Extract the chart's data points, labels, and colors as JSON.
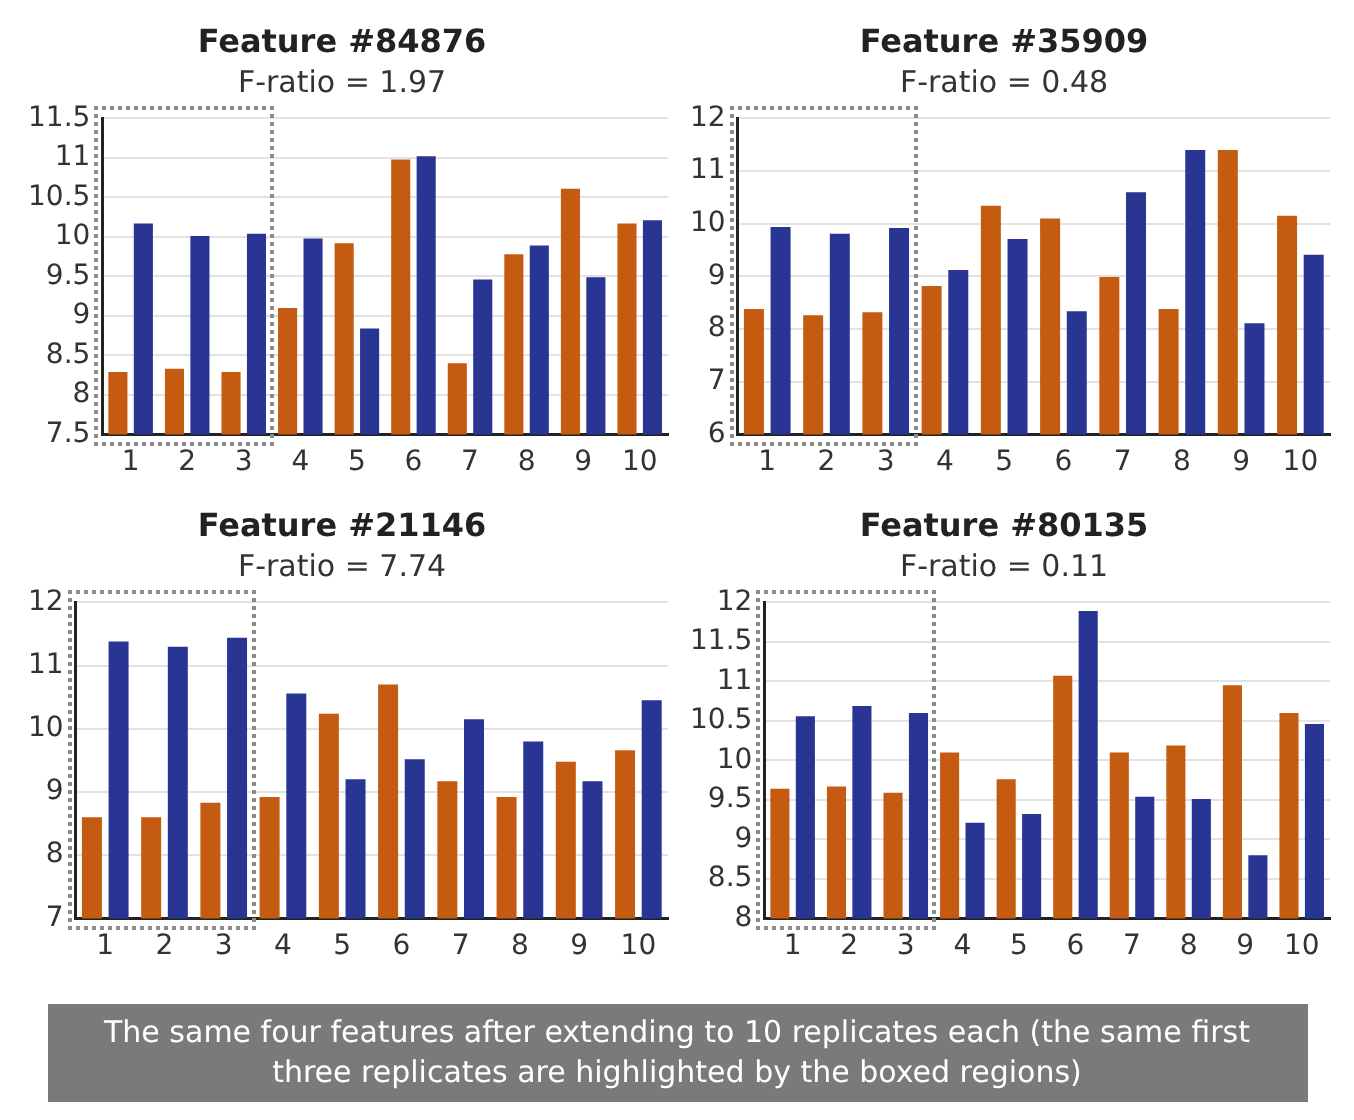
{
  "chart_data": [
    {
      "type": "bar",
      "title": "Feature #84876",
      "subtitle": "F-ratio = 1.97",
      "categories": [
        "1",
        "2",
        "3",
        "4",
        "5",
        "6",
        "7",
        "8",
        "9",
        "10"
      ],
      "series": [
        {
          "color": "#c55a11",
          "values": [
            8.29,
            8.33,
            8.29,
            9.1,
            9.92,
            10.98,
            8.4,
            9.78,
            10.61,
            10.17
          ]
        },
        {
          "color": "#283593",
          "values": [
            10.17,
            10.01,
            10.04,
            9.98,
            8.84,
            11.02,
            9.46,
            9.89,
            9.49,
            10.21
          ]
        }
      ],
      "ylim": [
        7.5,
        11.5
      ],
      "yticks": [
        7.5,
        8,
        8.5,
        9,
        9.5,
        10,
        10.5,
        11,
        11.5
      ],
      "grid": "y",
      "legend": false
    },
    {
      "type": "bar",
      "title": "Feature #35909",
      "subtitle": "F-ratio = 0.48",
      "categories": [
        "1",
        "2",
        "3",
        "4",
        "5",
        "6",
        "7",
        "8",
        "9",
        "10"
      ],
      "series": [
        {
          "color": "#c55a11",
          "values": [
            8.38,
            8.26,
            8.32,
            8.82,
            10.34,
            10.1,
            8.99,
            8.38,
            11.4,
            10.15
          ]
        },
        {
          "color": "#283593",
          "values": [
            9.94,
            9.81,
            9.92,
            9.12,
            9.71,
            8.34,
            10.6,
            11.4,
            8.11,
            9.41
          ]
        }
      ],
      "ylim": [
        6,
        12
      ],
      "yticks": [
        6,
        7,
        8,
        9,
        10,
        11,
        12
      ],
      "grid": "y",
      "legend": false
    },
    {
      "type": "bar",
      "title": "Feature #21146",
      "subtitle": "F-ratio = 7.74",
      "categories": [
        "1",
        "2",
        "3",
        "4",
        "5",
        "6",
        "7",
        "8",
        "9",
        "10"
      ],
      "series": [
        {
          "color": "#c55a11",
          "values": [
            8.6,
            8.6,
            8.83,
            8.92,
            10.24,
            10.7,
            9.17,
            8.92,
            9.48,
            9.66
          ]
        },
        {
          "color": "#283593",
          "values": [
            11.38,
            11.3,
            11.44,
            10.56,
            9.2,
            9.52,
            10.15,
            9.8,
            9.17,
            10.45
          ]
        }
      ],
      "ylim": [
        7,
        12
      ],
      "yticks": [
        7,
        8,
        9,
        10,
        11,
        12
      ],
      "grid": "y",
      "legend": false
    },
    {
      "type": "bar",
      "title": "Feature #80135",
      "subtitle": "F-ratio = 0.11",
      "categories": [
        "1",
        "2",
        "3",
        "4",
        "5",
        "6",
        "7",
        "8",
        "9",
        "10"
      ],
      "series": [
        {
          "color": "#c55a11",
          "values": [
            9.64,
            9.67,
            9.59,
            10.1,
            9.76,
            11.07,
            10.1,
            10.19,
            10.95,
            10.6
          ]
        },
        {
          "color": "#283593",
          "values": [
            10.56,
            10.69,
            10.6,
            9.21,
            9.32,
            11.89,
            9.54,
            9.51,
            8.8,
            10.46
          ]
        }
      ],
      "ylim": [
        8,
        12
      ],
      "yticks": [
        8,
        8.5,
        9,
        9.5,
        10,
        10.5,
        11,
        11.5,
        12
      ],
      "grid": "y",
      "legend": false,
      "annotations": [
        "The same four features after extending to 10 replicates each (the same first three replicates are highlighted by the boxed regions)"
      ]
    }
  ]
}
